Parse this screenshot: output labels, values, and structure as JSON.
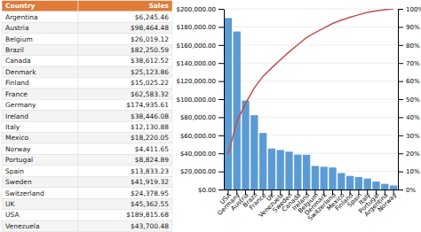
{
  "chart_data": [
    {
      "type": "table",
      "columns": [
        "Country",
        "Sales"
      ],
      "color": "#e07b39",
      "categories": [
        "Argentina",
        "Austria",
        "Belgium",
        "Brazil",
        "Canada",
        "Denmark",
        "Finland",
        "France",
        "Germany",
        "Ireland",
        "Italy",
        "Mexico",
        "Norway",
        "Portugal",
        "Spain",
        "Sweden",
        "Switzerland",
        "UK",
        "USA",
        "Venezuela"
      ],
      "values": [
        6245.46,
        98464.48,
        26019.12,
        82250.59,
        38612.52,
        25123.86,
        15025.22,
        62583.32,
        174935.61,
        38446.08,
        12130.88,
        18220.05,
        4411.65,
        8824.89,
        13833.23,
        41919.32,
        24378.95,
        45362.55,
        189815.68,
        43700.48
      ],
      "value_labels": [
        "$6,245.46",
        "$98,464.48",
        "$26,019.12",
        "$82,250.59",
        "$38,612.52",
        "$25,123.86",
        "$15,025.22",
        "$62,583.32",
        "$174,935.61",
        "$38,446.08",
        "$12,130.88",
        "$18,220.05",
        "$4,411.65",
        "$8,824.89",
        "$13,833.23",
        "$41,919.32",
        "$24,378.95",
        "$45,362.55",
        "$189,815.68",
        "$43,700.48"
      ]
    },
    {
      "type": "bar",
      "categories": [
        "USA",
        "Germany",
        "Austria",
        "Brazil",
        "France",
        "UK",
        "Venezuela",
        "Sweden",
        "Canada",
        "Ireland",
        "Belgium",
        "Denmark",
        "Switzerland",
        "Mexico",
        "Finland",
        "Spain",
        "Italy",
        "Portugal",
        "Argentina",
        "Norway"
      ],
      "series": [
        {
          "type": "bar",
          "color": "#5b9bd5",
          "values": [
            189815.68,
            174935.61,
            98464.48,
            82250.59,
            62583.32,
            45362.55,
            43700.48,
            41919.32,
            38612.52,
            38446.08,
            26019.12,
            25123.86,
            24378.95,
            18220.05,
            15025.22,
            13833.23,
            12130.88,
            8824.89,
            6245.46,
            4411.65
          ]
        },
        {
          "type": "line",
          "color": "#c0504d",
          "axis": "y2",
          "values": [
            0.195625,
            0.375914,
            0.477392,
            0.56216,
            0.626659,
            0.67341,
            0.718448,
            0.76165,
            0.801444,
            0.841067,
            0.867882,
            0.893775,
            0.9189,
            0.937678,
            0.953163,
            0.96742,
            0.979922,
            0.989017,
            0.995453,
            1.0
          ]
        }
      ],
      "ylim": [
        0,
        200000
      ],
      "yticks": [
        {
          "value": 0,
          "label": "$0.00"
        },
        {
          "value": 20000,
          "label": "$20,000.00"
        },
        {
          "value": 40000,
          "label": "$40,000.00"
        },
        {
          "value": 60000,
          "label": "$60,000.00"
        },
        {
          "value": 80000,
          "label": "$80,000.00"
        },
        {
          "value": 100000,
          "label": "$100,000.00"
        },
        {
          "value": 120000,
          "label": "$120,000.00"
        },
        {
          "value": 140000,
          "label": "$140,000.00"
        },
        {
          "value": 160000,
          "label": "$160,000.00"
        },
        {
          "value": 180000,
          "label": "$180,000.00"
        },
        {
          "value": 200000,
          "label": "$200,000.00"
        }
      ],
      "y2lim": [
        0,
        1.0
      ],
      "y2ticks": [
        {
          "value": 0,
          "label": "0%"
        },
        {
          "value": 0.1,
          "label": "10%"
        },
        {
          "value": 0.2,
          "label": "20%"
        },
        {
          "value": 0.3,
          "label": "30%"
        },
        {
          "value": 0.4,
          "label": "40%"
        },
        {
          "value": 0.5,
          "label": "50%"
        },
        {
          "value": 0.6,
          "label": "60%"
        },
        {
          "value": 0.7,
          "label": "70%"
        },
        {
          "value": 0.8,
          "label": "80%"
        },
        {
          "value": 0.9,
          "label": "90%"
        },
        {
          "value": 1.0,
          "label": "100%"
        }
      ],
      "grid": true
    }
  ]
}
